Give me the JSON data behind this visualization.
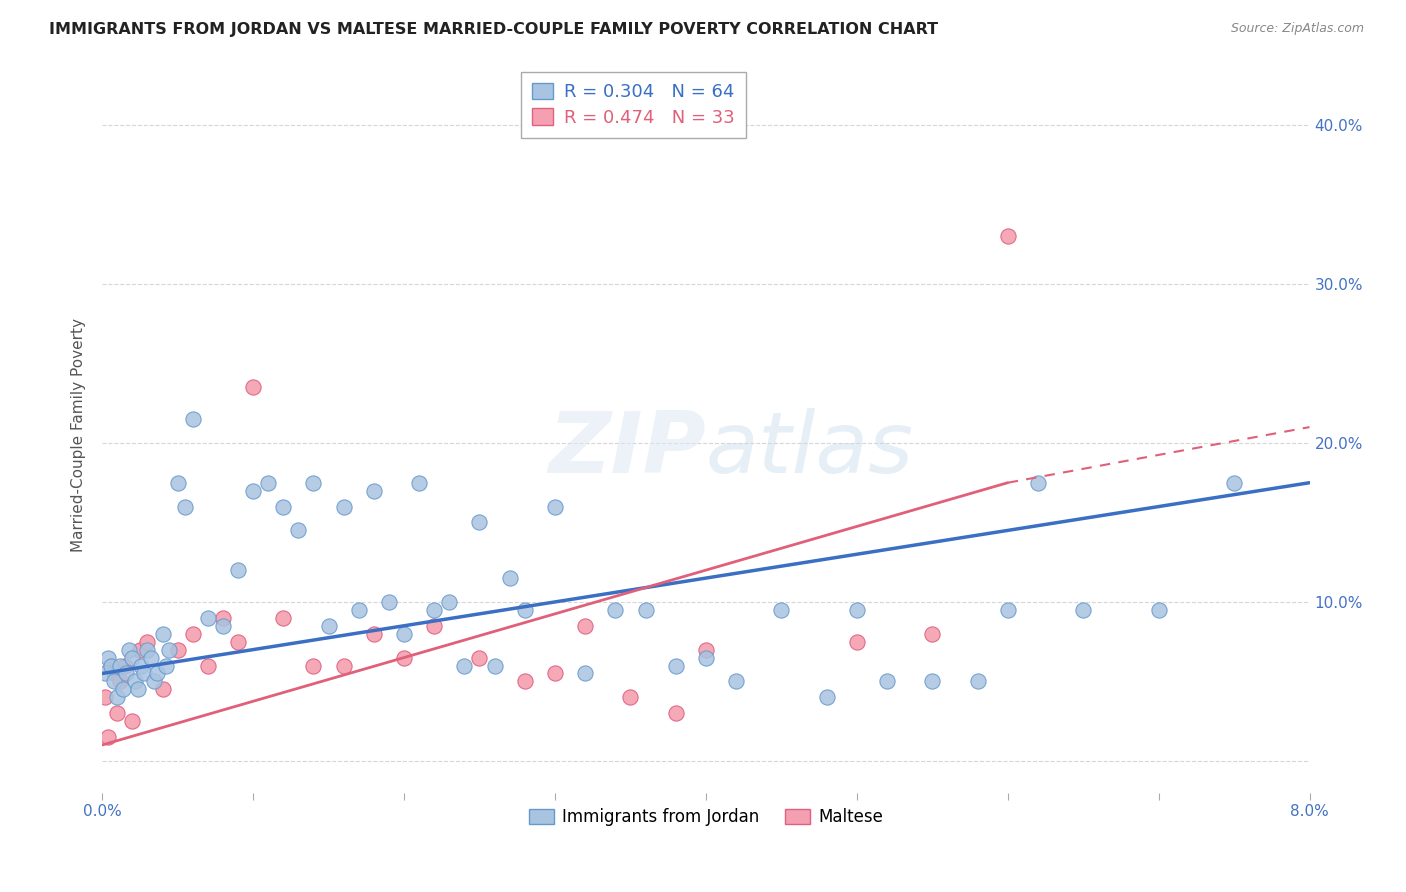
{
  "title": "IMMIGRANTS FROM JORDAN VS MALTESE MARRIED-COUPLE FAMILY POVERTY CORRELATION CHART",
  "source": "Source: ZipAtlas.com",
  "ylabel": "Married-Couple Family Poverty",
  "legend_label1": "Immigrants from Jordan",
  "legend_label2": "Maltese",
  "r1": 0.304,
  "n1": 64,
  "r2": 0.474,
  "n2": 33,
  "color1": "#a8c4e0",
  "color2": "#f4a0b0",
  "color1_edge": "#6699cc",
  "color2_edge": "#e06080",
  "line_color1": "#3a6fc4",
  "line_color2": "#e0607a",
  "x_min": 0.0,
  "x_max": 0.08,
  "y_min": -0.02,
  "y_max": 0.43,
  "x_ticks": [
    0.0,
    0.01,
    0.02,
    0.03,
    0.04,
    0.05,
    0.06,
    0.07,
    0.08
  ],
  "x_tick_labels": [
    "0.0%",
    "",
    "",
    "",
    "",
    "",
    "",
    "",
    "8.0%"
  ],
  "y_ticks": [
    0.0,
    0.1,
    0.2,
    0.3,
    0.4
  ],
  "y_tick_labels": [
    "",
    "10.0%",
    "20.0%",
    "30.0%",
    "40.0%"
  ],
  "jordan_x": [
    0.0002,
    0.0004,
    0.0006,
    0.0008,
    0.001,
    0.0012,
    0.0014,
    0.0016,
    0.0018,
    0.002,
    0.0022,
    0.0024,
    0.0026,
    0.0028,
    0.003,
    0.0032,
    0.0034,
    0.0036,
    0.004,
    0.0042,
    0.0044,
    0.005,
    0.0055,
    0.006,
    0.007,
    0.008,
    0.009,
    0.01,
    0.011,
    0.012,
    0.013,
    0.014,
    0.015,
    0.016,
    0.017,
    0.018,
    0.019,
    0.02,
    0.021,
    0.022,
    0.023,
    0.024,
    0.025,
    0.026,
    0.027,
    0.028,
    0.03,
    0.032,
    0.034,
    0.036,
    0.038,
    0.04,
    0.042,
    0.045,
    0.048,
    0.05,
    0.052,
    0.055,
    0.058,
    0.06,
    0.062,
    0.065,
    0.07,
    0.075
  ],
  "jordan_y": [
    0.055,
    0.065,
    0.06,
    0.05,
    0.04,
    0.06,
    0.045,
    0.055,
    0.07,
    0.065,
    0.05,
    0.045,
    0.06,
    0.055,
    0.07,
    0.065,
    0.05,
    0.055,
    0.08,
    0.06,
    0.07,
    0.175,
    0.16,
    0.215,
    0.09,
    0.085,
    0.12,
    0.17,
    0.175,
    0.16,
    0.145,
    0.175,
    0.085,
    0.16,
    0.095,
    0.17,
    0.1,
    0.08,
    0.175,
    0.095,
    0.1,
    0.06,
    0.15,
    0.06,
    0.115,
    0.095,
    0.16,
    0.055,
    0.095,
    0.095,
    0.06,
    0.065,
    0.05,
    0.095,
    0.04,
    0.095,
    0.05,
    0.05,
    0.05,
    0.095,
    0.175,
    0.095,
    0.095,
    0.175
  ],
  "maltese_x": [
    0.0002,
    0.0004,
    0.0006,
    0.0008,
    0.001,
    0.0012,
    0.0015,
    0.002,
    0.0025,
    0.003,
    0.004,
    0.005,
    0.006,
    0.007,
    0.008,
    0.009,
    0.01,
    0.012,
    0.014,
    0.016,
    0.018,
    0.02,
    0.022,
    0.025,
    0.028,
    0.03,
    0.032,
    0.035,
    0.038,
    0.04,
    0.05,
    0.055,
    0.06
  ],
  "maltese_y": [
    0.04,
    0.015,
    0.06,
    0.055,
    0.03,
    0.05,
    0.06,
    0.025,
    0.07,
    0.075,
    0.045,
    0.07,
    0.08,
    0.06,
    0.09,
    0.075,
    0.235,
    0.09,
    0.06,
    0.06,
    0.08,
    0.065,
    0.085,
    0.065,
    0.05,
    0.055,
    0.085,
    0.04,
    0.03,
    0.07,
    0.075,
    0.08,
    0.33
  ],
  "jordan_line_x": [
    0.0,
    0.08
  ],
  "jordan_line_y": [
    0.055,
    0.175
  ],
  "maltese_line_x": [
    0.0,
    0.06
  ],
  "maltese_line_y": [
    0.01,
    0.175
  ]
}
